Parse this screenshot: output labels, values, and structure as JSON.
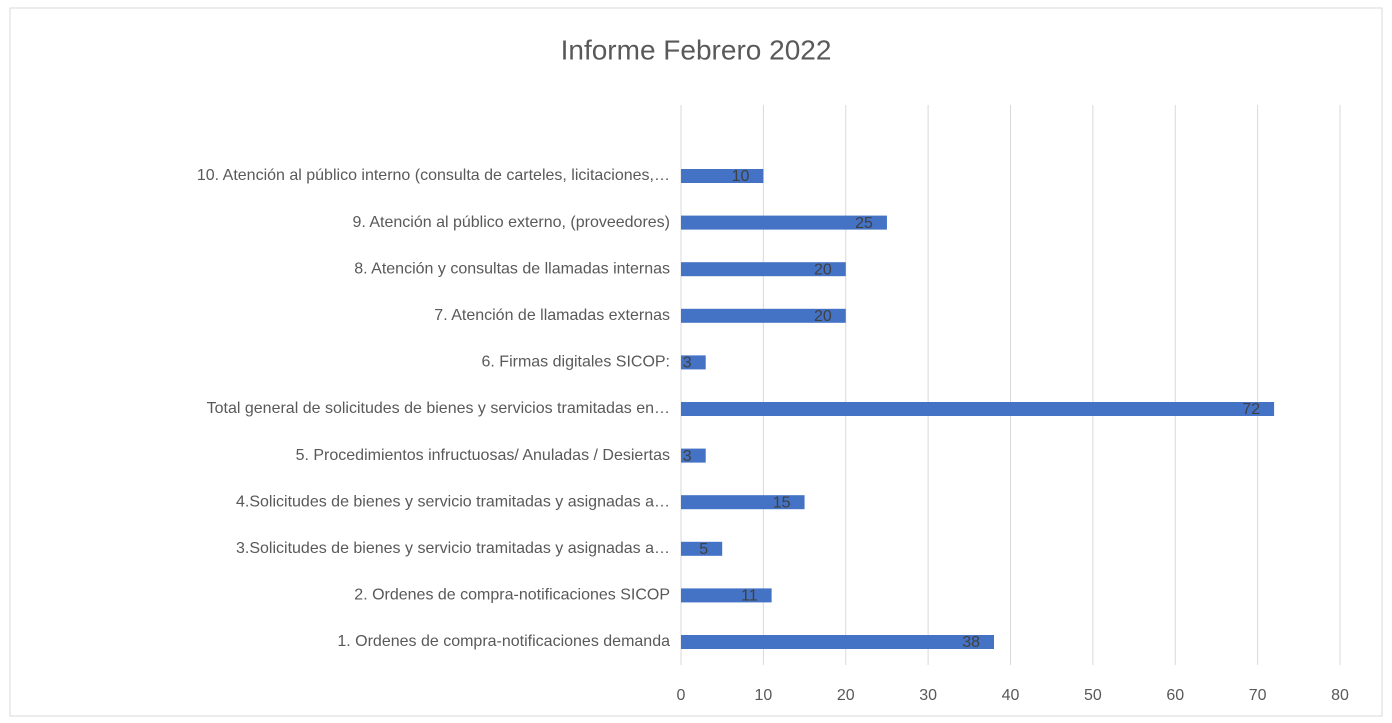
{
  "chart_data": {
    "type": "bar",
    "orientation": "horizontal",
    "title": "Informe Febrero 2022",
    "categories": [
      "1. Ordenes de compra-notificaciones demanda",
      "2. Ordenes de compra-notificaciones SICOP",
      "3.Solicitudes de bienes y servicio tramitadas y asignadas a…",
      "4.Solicitudes de bienes y servicio tramitadas y asignadas a…",
      "5. Procedimientos infructuosas/ Anuladas / Desiertas",
      "Total general de solicitudes de bienes y servicios tramitadas en…",
      "6. Firmas digitales SICOP:",
      "7. Atención de llamadas externas",
      "8. Atención y consultas de llamadas internas",
      "9. Atención al público externo, (proveedores)",
      "10. Atención al público interno (consulta de carteles, licitaciones,…"
    ],
    "values": [
      38,
      11,
      5,
      15,
      3,
      72,
      3,
      20,
      20,
      25,
      10
    ],
    "color": "#4472c4",
    "xlim": [
      0,
      80
    ],
    "xticks": [
      0,
      10,
      20,
      30,
      40,
      50,
      60,
      70,
      80
    ],
    "grid": true
  }
}
